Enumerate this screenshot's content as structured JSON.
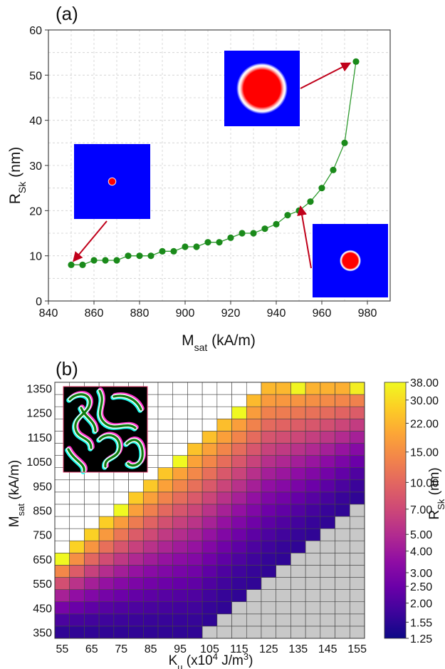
{
  "chart_data": [
    {
      "panel_label": "(a)",
      "type": "line",
      "xlabel": {
        "main": "M",
        "sub": "sat",
        "unit": " (kA/m)"
      },
      "ylabel": {
        "main": "R",
        "sub": "Sk",
        "unit": " (nm)"
      },
      "xlim": [
        840,
        990
      ],
      "ylim": [
        0,
        60
      ],
      "xticks": [
        840,
        860,
        880,
        900,
        920,
        940,
        960,
        980
      ],
      "yticks": [
        0,
        10,
        20,
        30,
        40,
        50,
        60
      ],
      "grid": true,
      "marker_color": "#1a8a1a",
      "line_color": "#2e9a2e",
      "x": [
        850,
        855,
        860,
        865,
        870,
        875,
        880,
        885,
        890,
        895,
        900,
        905,
        910,
        915,
        920,
        925,
        930,
        935,
        940,
        945,
        950,
        955,
        960,
        965,
        970,
        975
      ],
      "y": [
        8,
        8,
        9,
        9,
        9,
        10,
        10,
        10,
        11,
        11,
        12,
        12,
        13,
        13,
        14,
        15,
        15,
        16,
        17,
        19,
        20,
        22,
        25,
        29,
        35,
        53
      ],
      "insets": [
        {
          "name": "small-skyrmion",
          "size": "small",
          "points_to": [
            850,
            8
          ]
        },
        {
          "name": "medium-skyrmion",
          "size": "medium",
          "points_to": [
            950,
            20
          ]
        },
        {
          "name": "large-skyrmion",
          "size": "large",
          "points_to": [
            975,
            53
          ]
        }
      ]
    },
    {
      "panel_label": "(b)",
      "type": "heatmap",
      "xlabel": {
        "main": "K",
        "sub": "u",
        "unit": " (x10",
        "sup": "4",
        "unit2": " J/m",
        "sup2": "3",
        "close": ")"
      },
      "ylabel": {
        "main": "M",
        "sub": "sat",
        "unit": " (kA/m)"
      },
      "x_start": 55,
      "x_step": 5,
      "x_count": 21,
      "y_start": 350,
      "y_step": 50,
      "y_count": 21,
      "xtick_labels": [
        "55",
        "65",
        "75",
        "85",
        "95",
        "105",
        "115",
        "125",
        "135",
        "145",
        "155"
      ],
      "ytick_labels": [
        "350",
        "450",
        "550",
        "650",
        "750",
        "850",
        "950",
        "1050",
        "1150",
        "1250",
        "1350"
      ],
      "value_rule": "cells above the skyrmion band are empty (white), cells below the band are gray (no skyrmion); band values R_Sk decrease with K_u",
      "colorbar": {
        "label": {
          "main": "R",
          "sub": "Sk",
          "unit": " (nm)"
        },
        "scale": "log",
        "range": [
          1.25,
          38.0
        ],
        "ticks": [
          "38.00",
          "30.00",
          "22.00",
          "15.00",
          "10.00",
          "7.00",
          "5.00",
          "4.00",
          "3.00",
          "2.50",
          "2.00",
          "1.55",
          "1.25"
        ],
        "colors": [
          "#0d0887",
          "#3d049b",
          "#6a00a8",
          "#8f0da4",
          "#b12a90",
          "#cc4778",
          "#e16462",
          "#f2844b",
          "#fca636",
          "#fcce25",
          "#f0f921"
        ]
      },
      "inset": {
        "name": "labyrinth-domain"
      }
    }
  ]
}
